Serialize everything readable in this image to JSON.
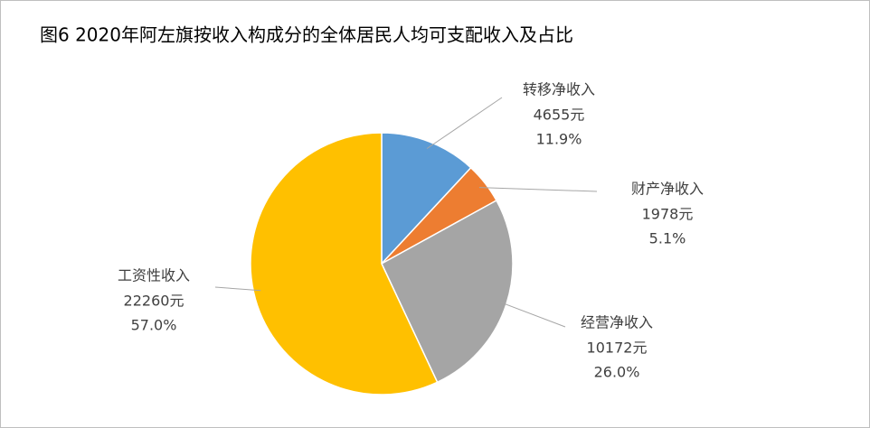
{
  "chart_data": {
    "type": "pie",
    "title": "图6 2020年阿左旗按收入构成分的全体居民人均可支配收入及占比",
    "categories": [
      "转移净收入",
      "财产净收入",
      "经营净收入",
      "工资性收入"
    ],
    "values": [
      4655,
      1978,
      10172,
      22260
    ],
    "value_labels": [
      "4655元",
      "1978元",
      "10172元",
      "22260元"
    ],
    "percents": [
      11.9,
      5.1,
      26.0,
      57.0
    ],
    "percent_labels": [
      "11.9%",
      "5.1%",
      "26.0%",
      "57.0%"
    ],
    "colors": [
      "#5b9bd5",
      "#ed7d31",
      "#a5a5a5",
      "#ffc000"
    ]
  }
}
